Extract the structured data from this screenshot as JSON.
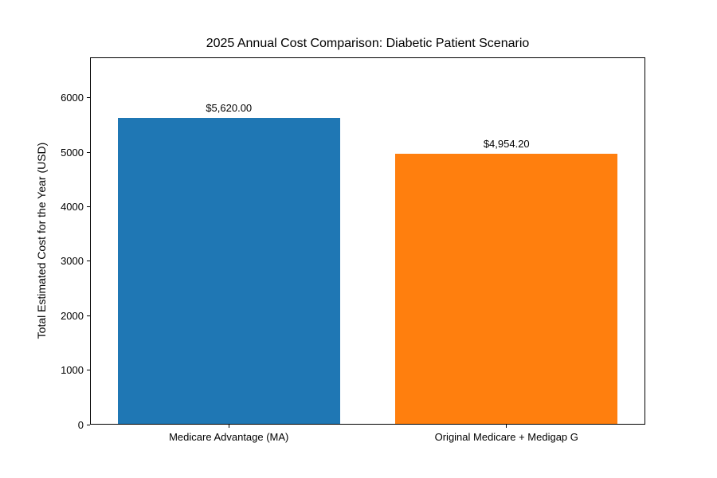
{
  "chart_data": {
    "type": "bar",
    "title": "2025 Annual Cost Comparison: Diabetic Patient Scenario",
    "xlabel": "",
    "ylabel": "Total Estimated Cost for the Year (USD)",
    "categories": [
      "Medicare Advantage (MA)",
      "Original Medicare + Medigap G"
    ],
    "values": [
      5620.0,
      4954.2
    ],
    "bar_value_labels": [
      "$5,620.00",
      "$4,954.20"
    ],
    "bar_colors": [
      "#1f77b4",
      "#ff7f0e"
    ],
    "yticks": [
      0,
      1000,
      2000,
      3000,
      4000,
      5000,
      6000
    ],
    "ylim": [
      0,
      6744
    ],
    "grid": false,
    "legend_position": "none",
    "background_color": "#ffffff",
    "frame_color": "#000000",
    "text_color": "#000000"
  }
}
